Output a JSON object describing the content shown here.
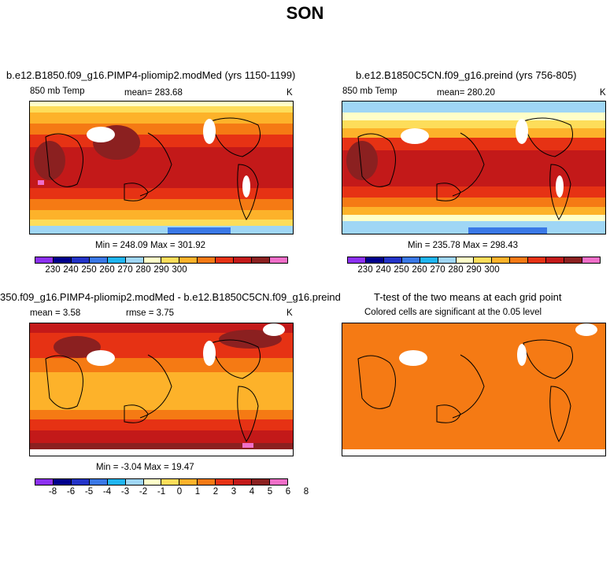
{
  "figure_title": "SON",
  "panels": {
    "p1": {
      "title": "b.e12.B1850.f09_g16.PIMP4-pliomip2.modMed (yrs 1150-1199)",
      "left_label": "850 mb Temp",
      "stat": "mean= 283.68",
      "unit": "K",
      "minmax": "Min = 248.09 Max = 301.92"
    },
    "p2": {
      "title": "b.e12.B1850C5CN.f09_g16.preind (yrs 756-805)",
      "left_label": "850 mb Temp",
      "stat": "mean= 280.20",
      "unit": "K",
      "minmax": "Min = 235.78 Max = 298.43"
    },
    "p3": {
      "title": "350.f09_g16.PIMP4-pliomip2.modMed - b.e12.B1850C5CN.f09_g16.preind",
      "stat_mean": "mean =    3.58",
      "stat_rmse": "rmse =    3.75",
      "unit": "K",
      "minmax": "Min =  -3.04 Max =  19.47"
    },
    "p4": {
      "title": "T-test of the two means at each grid point",
      "subtitle": "Colored cells are significant at the 0.05 level"
    }
  },
  "colorbar_abs": {
    "labels": [
      "230",
      "240",
      "250",
      "260",
      "270",
      "280",
      "290",
      "300"
    ],
    "colors": [
      "#8c30f0",
      "#00008c",
      "#2333c8",
      "#3a78e6",
      "#1fb5f0",
      "#9fd6f5",
      "#fefec8",
      "#fddd5a",
      "#fdb22a",
      "#f57a14",
      "#e63214",
      "#c31919",
      "#8b2020",
      "#ef6ec8"
    ]
  },
  "colorbar_diff": {
    "labels": [
      "-8",
      "-6",
      "-5",
      "-4",
      "-3",
      "-2",
      "-1",
      "0",
      "1",
      "2",
      "3",
      "4",
      "5",
      "6",
      "8"
    ],
    "colors": [
      "#8c30f0",
      "#00008c",
      "#2333c8",
      "#3a78e6",
      "#1fb5f0",
      "#9fd6f5",
      "#fefec8",
      "#fddd5a",
      "#fdb22a",
      "#f57a14",
      "#e63214",
      "#c31919",
      "#8b2020",
      "#ef6ec8"
    ]
  },
  "colors": {
    "ttest_fill": "#f57a14",
    "land_outline": "#000000",
    "missing": "#ffffff"
  }
}
